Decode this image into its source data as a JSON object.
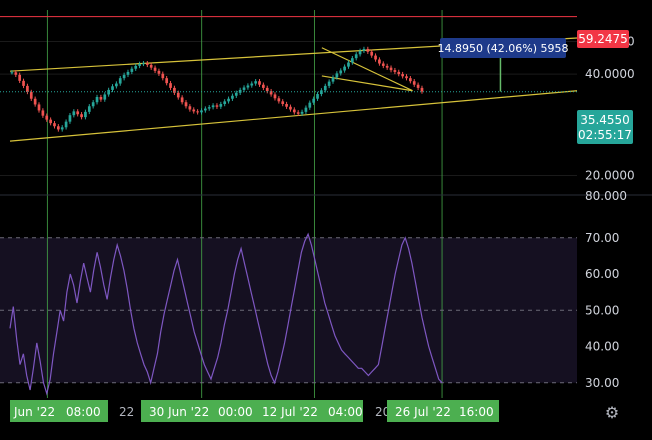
{
  "chart_data": [
    {
      "type": "candlestick",
      "title": "",
      "price_scale_labels": [
        "50.0000",
        "40.0000",
        "20.0000",
        "80.000"
      ],
      "price_ticks": [
        50,
        40,
        20
      ],
      "y_scale": "log",
      "ylim": [
        17.5,
        62.0
      ],
      "resistance_line": 59.2475,
      "resistance_label": "59.2475",
      "last_price": {
        "value": 35.455,
        "label": "35.4550",
        "countdown": "02:55:17"
      },
      "measure": {
        "label": "14.8950 (42.06%) 5958",
        "from": 35.5,
        "to": 50.4
      },
      "trend_channel": {
        "upper": [
          [
            0,
            40.8
          ],
          [
            1,
            51.2
          ]
        ],
        "lower": [
          [
            0,
            25.3
          ],
          [
            1,
            35.7
          ]
        ]
      },
      "wedge": {
        "upper": [
          [
            0.55,
            47.9
          ],
          [
            0.71,
            35.7
          ]
        ],
        "lower": [
          [
            0.55,
            39.5
          ],
          [
            0.71,
            35.7
          ]
        ]
      },
      "candles_close": [
        40.5,
        39.8,
        38.2,
        36.9,
        35.4,
        33.8,
        32.5,
        31.2,
        30.1,
        29.3,
        28.6,
        28.0,
        27.4,
        27.8,
        28.9,
        30.2,
        31.0,
        30.4,
        29.8,
        30.9,
        32.1,
        33.0,
        34.2,
        33.6,
        34.8,
        35.9,
        36.8,
        37.5,
        38.9,
        39.8,
        40.6,
        41.5,
        42.3,
        42.9,
        43.1,
        42.6,
        41.8,
        40.9,
        40.1,
        38.9,
        37.6,
        36.4,
        35.2,
        34.1,
        33.0,
        32.1,
        31.4,
        31.0,
        30.8,
        31.2,
        31.6,
        31.9,
        32.3,
        32.0,
        32.6,
        33.2,
        33.8,
        34.5,
        35.2,
        35.9,
        36.5,
        37.0,
        37.5,
        38.1,
        37.2,
        36.4,
        35.6,
        34.8,
        33.9,
        33.2,
        32.6,
        32.0,
        31.4,
        30.8,
        30.5,
        30.9,
        31.8,
        32.9,
        33.8,
        34.9,
        35.8,
        36.9,
        38.0,
        39.1,
        40.2,
        41.0,
        42.1,
        43.3,
        44.6,
        45.8,
        46.9,
        47.5,
        46.6,
        45.4,
        44.2,
        43.0,
        42.3,
        41.8,
        41.1,
        40.6,
        40.0,
        39.4,
        38.9,
        38.1,
        37.2,
        36.4,
        35.5
      ]
    },
    {
      "type": "line",
      "title": "",
      "y_tick_labels": [
        "70.00",
        "60.00",
        "50.00",
        "40.00",
        "30.00"
      ],
      "y_ticks": [
        70,
        60,
        50,
        40,
        30
      ],
      "ylim": [
        25.8,
        81.8
      ],
      "series": [
        {
          "color": "#7e57c2",
          "values": [
            45,
            51,
            42,
            35,
            38,
            32,
            28,
            34,
            41,
            36,
            30,
            27,
            31,
            38,
            44,
            50,
            47,
            55,
            60,
            57,
            52,
            58,
            63,
            59,
            55,
            61,
            66,
            62,
            57,
            53,
            59,
            64,
            68,
            65,
            61,
            56,
            50,
            45,
            41,
            38,
            35,
            33,
            30,
            34,
            38,
            44,
            49,
            53,
            57,
            61,
            64,
            60,
            56,
            52,
            48,
            44,
            41,
            38,
            35,
            33,
            31,
            34,
            37,
            41,
            46,
            50,
            55,
            60,
            64,
            67,
            63,
            59,
            55,
            51,
            47,
            43,
            39,
            35,
            32,
            30,
            33,
            37,
            41,
            46,
            51,
            56,
            61,
            66,
            69,
            71,
            68,
            64,
            60,
            56,
            52,
            49,
            46,
            43,
            41,
            39,
            38,
            37,
            36,
            35,
            34,
            34,
            33,
            32,
            33,
            34,
            35,
            40,
            45,
            50,
            55,
            60,
            64,
            68,
            70,
            67,
            63,
            58,
            53,
            48,
            44,
            40,
            37,
            34,
            31,
            30
          ]
        }
      ],
      "bands": [
        70,
        50,
        30
      ]
    }
  ],
  "time_axis": {
    "labels": [
      "Jun '22",
      "08:00",
      "22",
      "30 Jun '22",
      "00:00",
      "12 Jul '22",
      "04:00",
      "20",
      "26 Jul '22",
      "16:00"
    ]
  },
  "colors": {
    "background": "#000000",
    "grid": "#1a1a1a",
    "candle_up": "#26a69a",
    "candle_down": "#ef5350",
    "channel": "#d6c23a",
    "vertical_marker": "#43a047",
    "resistance": "#f23645",
    "last_price_badge": "#26a69a",
    "measure_badge": "#1e3a8a",
    "measure_arrow": "#66bb6a",
    "rsi_line": "#7e57c2",
    "rsi_band_fill": "#1a1330"
  },
  "icons": {
    "settings": "gear-icon"
  }
}
